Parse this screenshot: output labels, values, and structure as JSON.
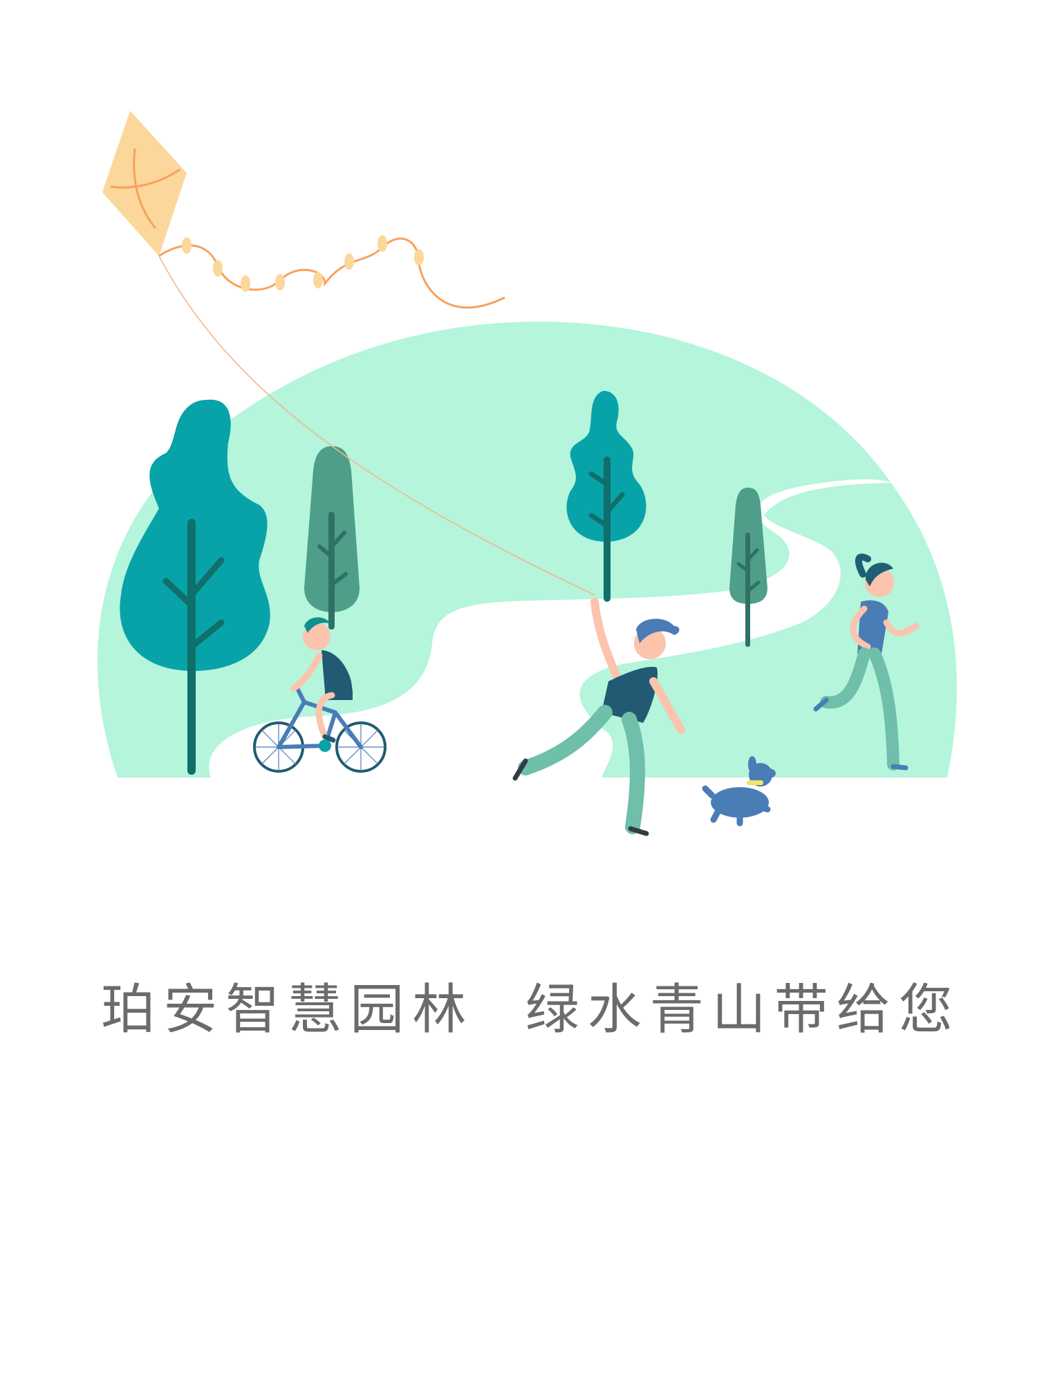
{
  "splash": {
    "slogan": "珀安智慧园林  绿水青山带给您"
  },
  "illustration": {
    "colors": {
      "hill": "#b4f5dc",
      "path": "#ffffff",
      "tree_teal": "#08a3a8",
      "tree_green": "#4e9e8a",
      "trunk": "#0f6f6b",
      "kite": "#fcd79b",
      "kite_tail": "#f7a15d",
      "string": "#f6b58a",
      "shirt_dark": "#215a72",
      "pants": "#6fbfaa",
      "skin": "#fcc3ad",
      "hair": "#1d5f73",
      "blue": "#4a7cb6",
      "collar": "#f2e36d"
    },
    "icons": [
      "kite-icon",
      "tree-icon",
      "cyclist-icon",
      "runner-icon",
      "dog-icon"
    ]
  }
}
